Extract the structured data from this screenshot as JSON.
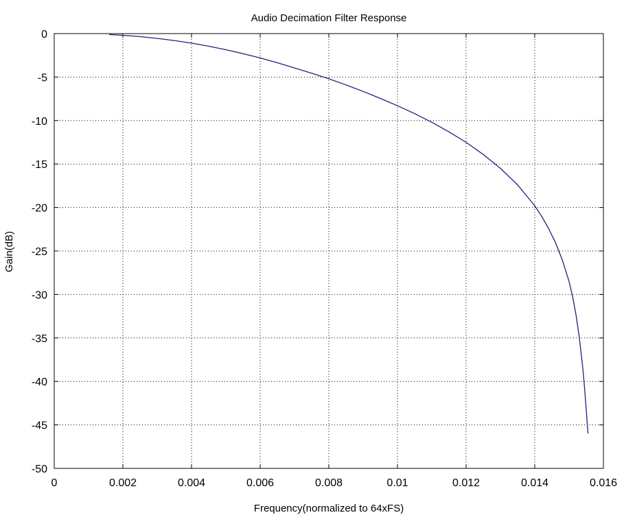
{
  "chart_data": {
    "type": "line",
    "title": "Audio Decimation Filter Response",
    "xlabel": "Frequency(normalized to 64xFS)",
    "ylabel": "Gain(dB)",
    "xlim": [
      0,
      0.016
    ],
    "ylim": [
      -50,
      0
    ],
    "xticks": [
      0,
      0.002,
      0.004,
      0.006,
      0.008,
      0.01,
      0.012,
      0.014,
      0.016
    ],
    "xtick_labels": [
      "0",
      "0.002",
      "0.004",
      "0.006",
      "0.008",
      "0.01",
      "0.012",
      "0.014",
      "0.016"
    ],
    "yticks": [
      0,
      -5,
      -10,
      -15,
      -20,
      -25,
      -30,
      -35,
      -40,
      -45,
      -50
    ],
    "ytick_labels": [
      "0",
      "-5",
      "-10",
      "-15",
      "-20",
      "-25",
      "-30",
      "-35",
      "-40",
      "-45",
      "-50"
    ],
    "grid": true,
    "grid_style": "dotted",
    "colors": {
      "line": "#1f1f7a",
      "axes": "#000000",
      "grid": "#000000",
      "background": "#ffffff"
    },
    "series": [
      {
        "x": [
          0.0016,
          0.002,
          0.0025,
          0.003,
          0.0035,
          0.004,
          0.0045,
          0.005,
          0.0055,
          0.006,
          0.0065,
          0.007,
          0.0075,
          0.008,
          0.0085,
          0.009,
          0.0095,
          0.01,
          0.0105,
          0.011,
          0.0115,
          0.012,
          0.0125,
          0.013,
          0.0135,
          0.014,
          0.0142,
          0.0144,
          0.0146,
          0.0148,
          0.015,
          0.0151,
          0.0152,
          0.0153,
          0.0154,
          0.01545,
          0.0155,
          0.01555
        ],
        "y": [
          -0.1,
          -0.2,
          -0.35,
          -0.55,
          -0.8,
          -1.1,
          -1.45,
          -1.85,
          -2.3,
          -2.8,
          -3.35,
          -3.95,
          -4.55,
          -5.2,
          -5.9,
          -6.65,
          -7.45,
          -8.3,
          -9.2,
          -10.2,
          -11.3,
          -12.5,
          -13.9,
          -15.5,
          -17.4,
          -19.8,
          -21.0,
          -22.4,
          -24.0,
          -26.0,
          -28.5,
          -30.2,
          -32.3,
          -35.0,
          -38.5,
          -40.7,
          -43.3,
          -46.0
        ]
      }
    ]
  }
}
